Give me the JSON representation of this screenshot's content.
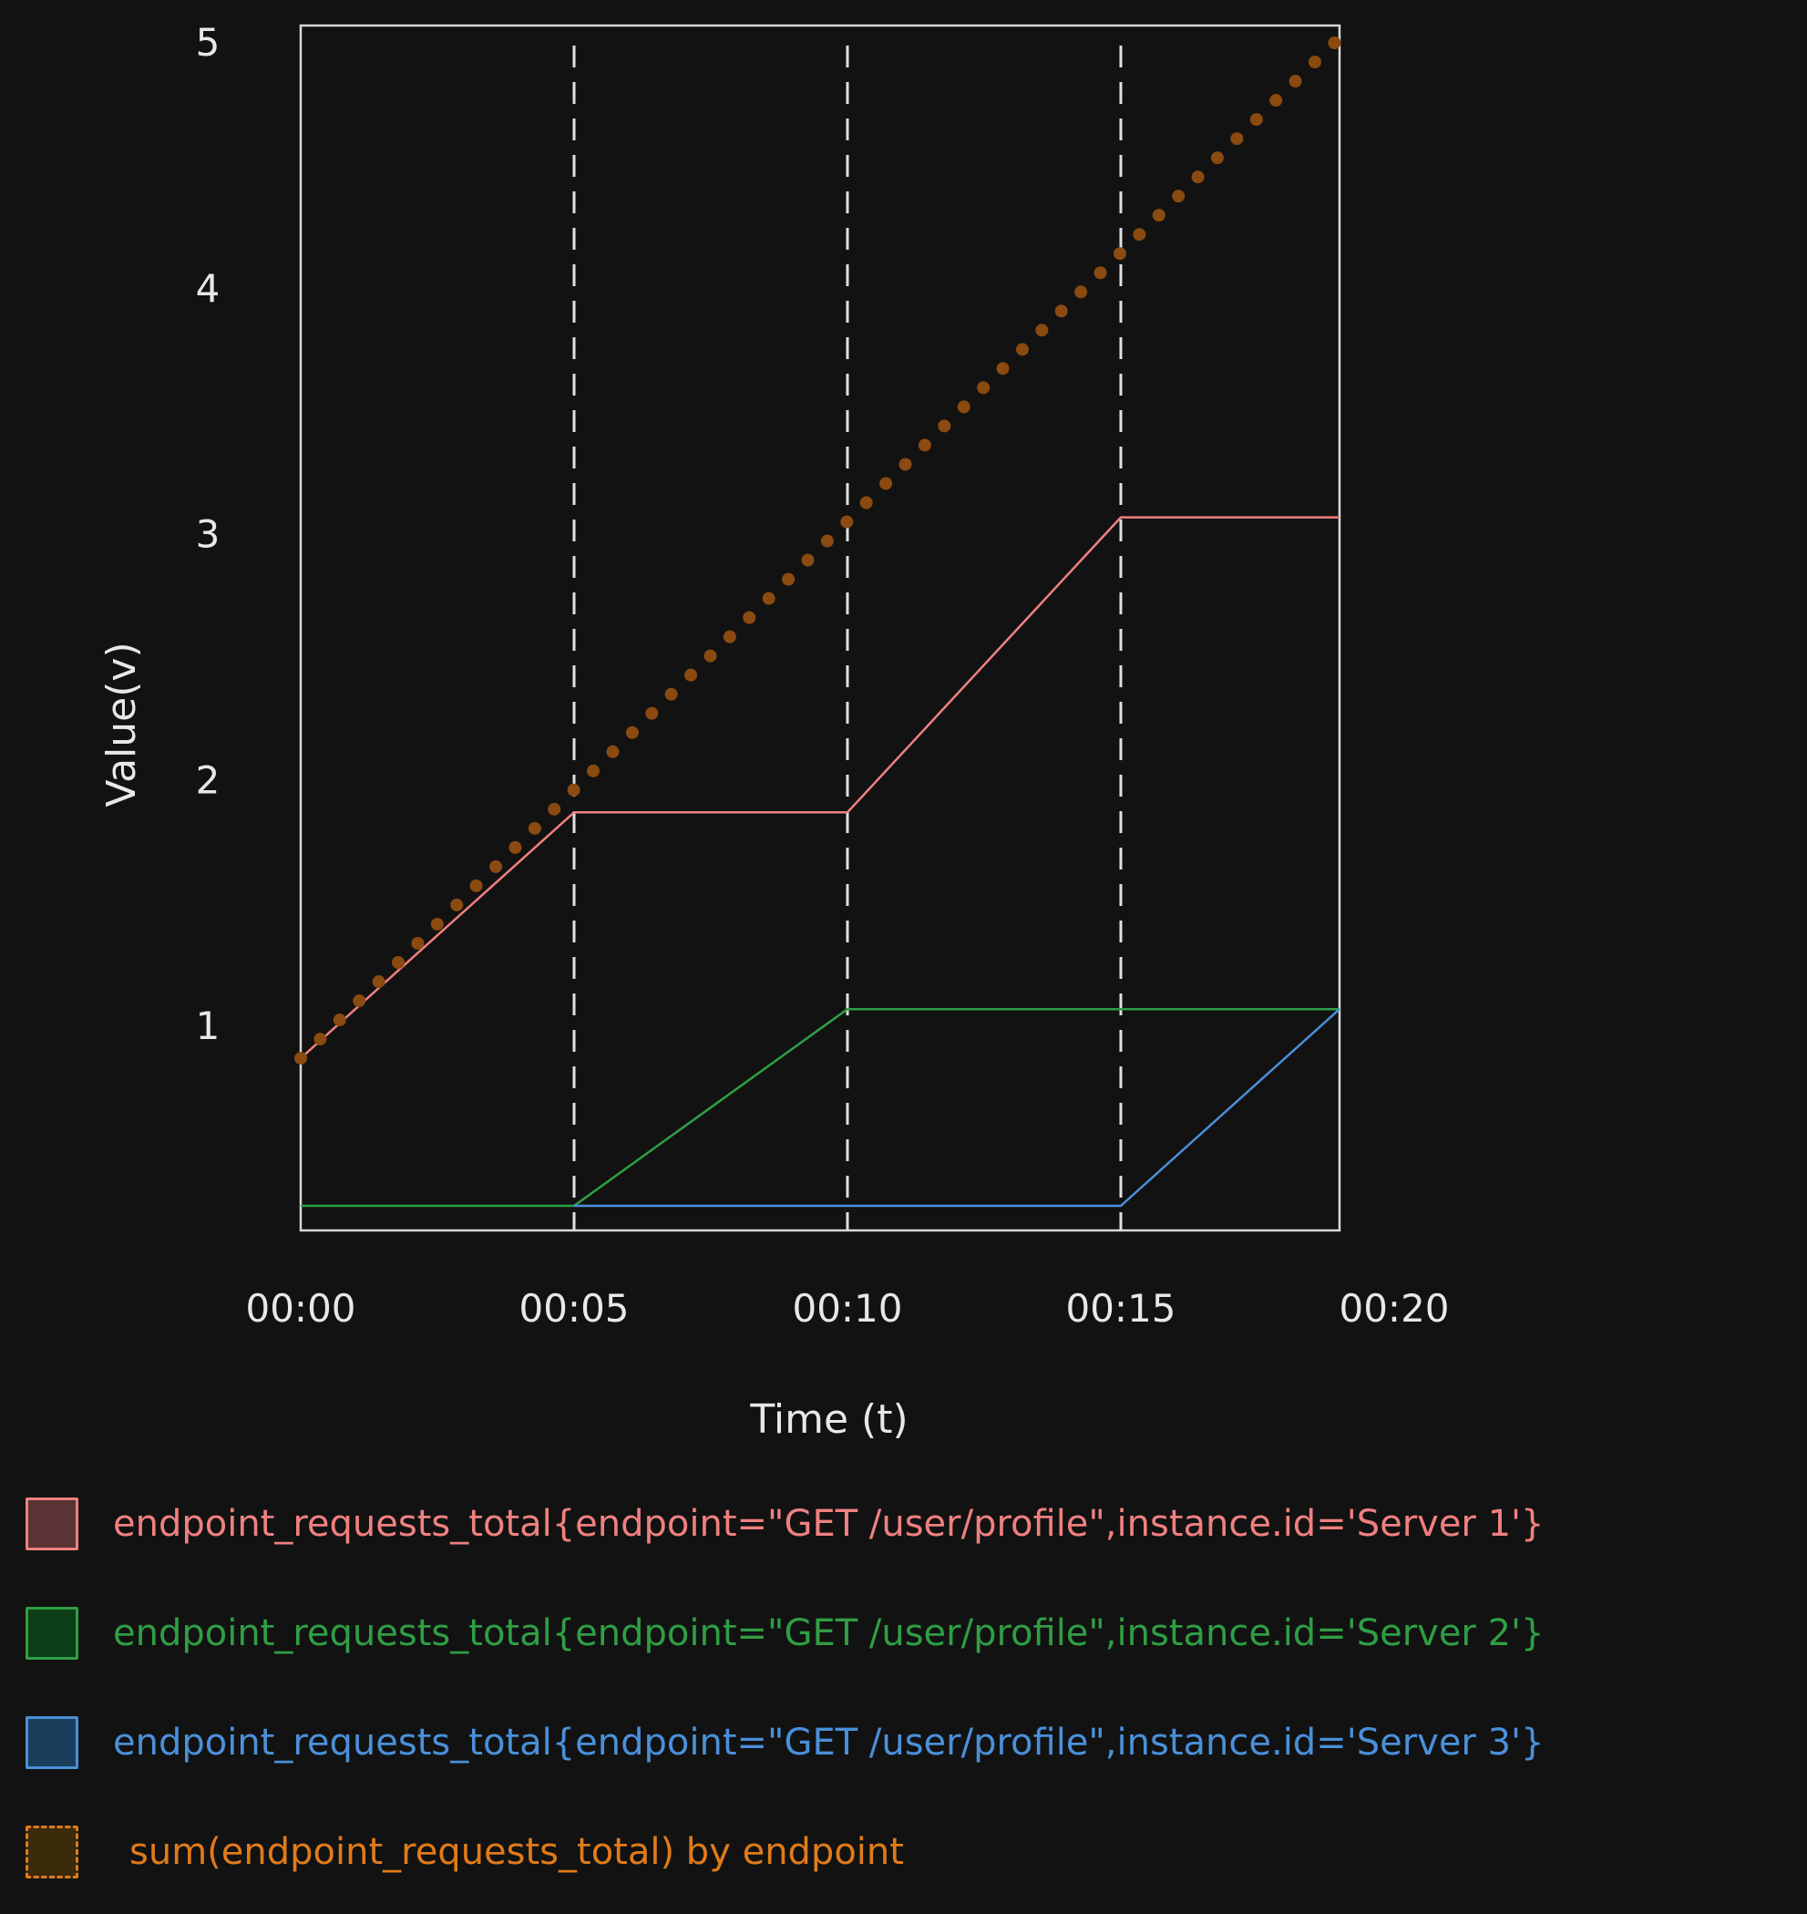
{
  "chart_data": {
    "type": "line",
    "xlabel": "Time (t)",
    "ylabel": "Value(v)",
    "x_ticks": [
      "00:00",
      "00:05",
      "00:10",
      "00:15",
      "00:20"
    ],
    "y_ticks": [
      1,
      2,
      3,
      4,
      5
    ],
    "xlim": [
      0,
      19
    ],
    "ylim": [
      0.2,
      5.1
    ],
    "x_tick_positions": [
      0,
      5,
      10,
      15,
      20
    ],
    "vlines": [
      5,
      10,
      15
    ],
    "series": [
      {
        "name": "endpoint_requests_total{endpoint=\"GET /user/profile\",instance.id='Server 1'}",
        "color": "#f08080",
        "style": "solid",
        "swatch": "#5a3434",
        "x": [
          0,
          5,
          10,
          15,
          19
        ],
        "y": [
          0.9,
          1.9,
          1.9,
          3.1,
          3.1
        ]
      },
      {
        "name": "endpoint_requests_total{endpoint=\"GET /user/profile\",instance.id='Server 2'}",
        "color": "#2f9e44",
        "style": "solid",
        "swatch": "#0b3d17",
        "x": [
          0,
          5,
          10,
          19
        ],
        "y": [
          0.3,
          0.3,
          1.1,
          1.1
        ]
      },
      {
        "name": "endpoint_requests_total{endpoint=\"GET /user/profile\",instance.id='Server 3'}",
        "color": "#4a90d9",
        "style": "solid",
        "swatch": "#1a3d5c",
        "x": [
          5,
          15,
          19
        ],
        "y": [
          0.3,
          0.3,
          1.1
        ]
      },
      {
        "name": "sum(endpoint_requests_total) by endpoint",
        "color": "#8a4a10",
        "legend_color": "#e07b1a",
        "style": "dotted",
        "swatch": "#3a2a0a",
        "x": [
          0,
          19
        ],
        "y": [
          0.9,
          5.05
        ]
      }
    ],
    "legend_position": "bottom"
  }
}
